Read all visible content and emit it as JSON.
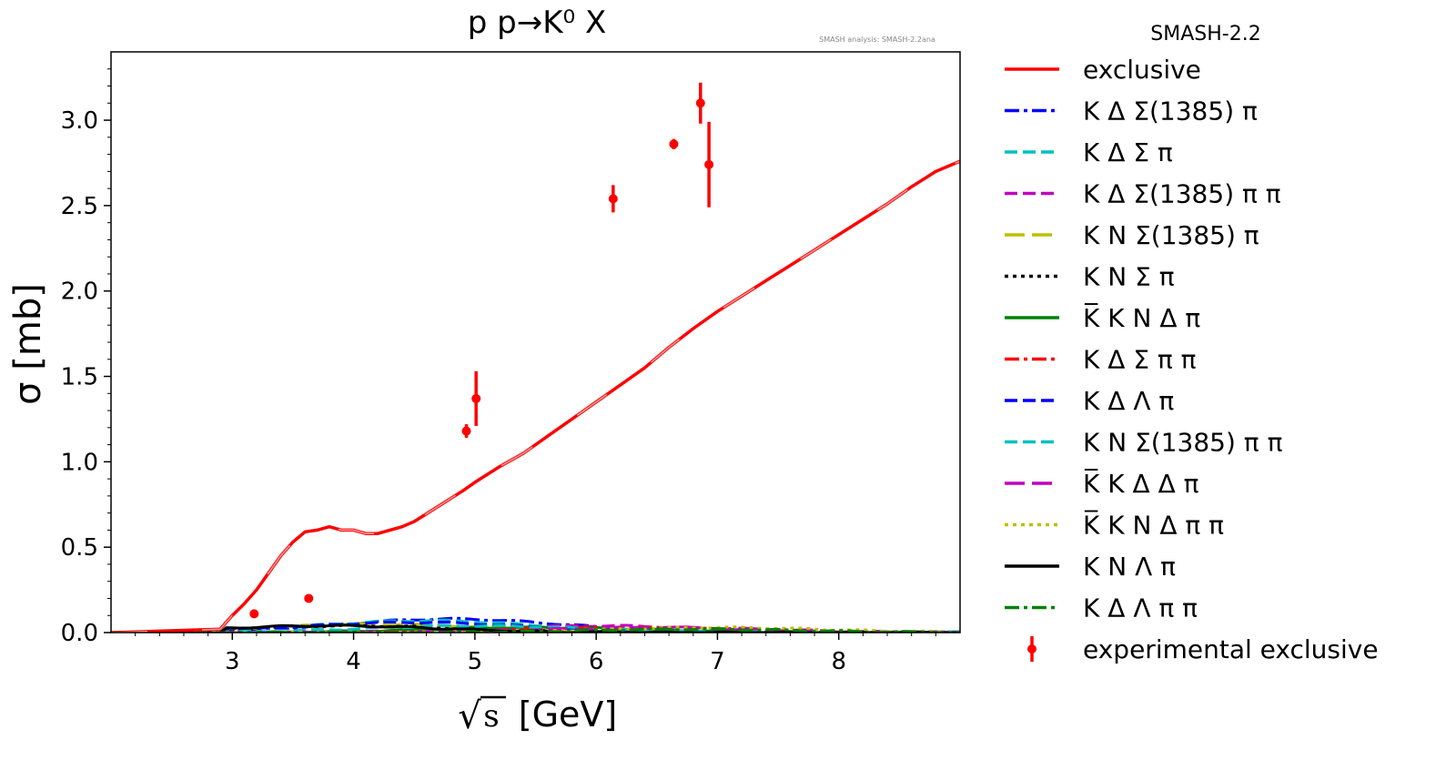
{
  "chart_data": {
    "type": "line",
    "title": "p p→K⁰ X",
    "annotation": "SMASH analysis: SMASH-2.2ana",
    "xlabel_unit": "[GeV]",
    "ylabel": "σ [mb]",
    "xlim": [
      2.0,
      9.0
    ],
    "ylim": [
      0.0,
      3.4
    ],
    "x_ticks": [
      3,
      4,
      5,
      6,
      7,
      8
    ],
    "x_tick_labels": [
      "3",
      "4",
      "5",
      "6",
      "7",
      "8"
    ],
    "y_ticks": [
      0.0,
      0.5,
      1.0,
      1.5,
      2.0,
      2.5,
      3.0
    ],
    "y_tick_labels": [
      "0.0",
      "0.5",
      "1.0",
      "1.5",
      "2.0",
      "2.5",
      "3.0"
    ],
    "grid": false,
    "legend_position": "outside-right",
    "legend_title": "SMASH-2.2",
    "exclusive": {
      "name": "exclusive",
      "color": "#ff0000",
      "x": [
        2.0,
        2.9,
        3.0,
        3.1,
        3.2,
        3.3,
        3.4,
        3.5,
        3.6,
        3.7,
        3.8,
        3.9,
        4.0,
        4.1,
        4.2,
        4.3,
        4.4,
        4.5,
        4.7,
        4.9,
        5.0,
        5.2,
        5.4,
        5.6,
        5.8,
        6.0,
        6.2,
        6.4,
        6.6,
        6.8,
        7.0,
        7.2,
        7.4,
        7.6,
        7.8,
        8.0,
        8.2,
        8.4,
        8.6,
        8.8,
        9.0
      ],
      "y": [
        0.0,
        0.02,
        0.1,
        0.17,
        0.25,
        0.35,
        0.45,
        0.53,
        0.59,
        0.6,
        0.62,
        0.6,
        0.6,
        0.58,
        0.58,
        0.6,
        0.62,
        0.65,
        0.74,
        0.83,
        0.88,
        0.97,
        1.05,
        1.15,
        1.25,
        1.35,
        1.45,
        1.55,
        1.67,
        1.78,
        1.88,
        1.97,
        2.06,
        2.15,
        2.24,
        2.33,
        2.42,
        2.51,
        2.61,
        2.7,
        2.76
      ]
    },
    "experimental_exclusive": {
      "name": "experimental exclusive",
      "color": "#ff0000",
      "points": [
        {
          "x": 3.18,
          "y": 0.11,
          "err": 0.0
        },
        {
          "x": 3.63,
          "y": 0.2,
          "err": 0.0
        },
        {
          "x": 4.93,
          "y": 1.18,
          "err": 0.04
        },
        {
          "x": 5.01,
          "y": 1.37,
          "err": 0.16
        },
        {
          "x": 6.14,
          "y": 2.54,
          "err": 0.08
        },
        {
          "x": 6.64,
          "y": 2.86,
          "err": 0.03
        },
        {
          "x": 6.86,
          "y": 3.1,
          "err": 0.12
        },
        {
          "x": 6.93,
          "y": 2.74,
          "err": 0.25
        }
      ]
    },
    "minor_channels": [
      {
        "name": "K Δ Σ(1385) π",
        "color": "#0000ff",
        "dash": "dashdot",
        "peak_x": 4.8,
        "peak_y": 0.08
      },
      {
        "name": "K Δ Σ π",
        "color": "#00bfbf",
        "dash": "dashed",
        "peak_x": 4.6,
        "peak_y": 0.07
      },
      {
        "name": "K Δ Σ(1385) π π",
        "color": "#bf00bf",
        "dash": "dashed",
        "peak_x": 6.0,
        "peak_y": 0.04
      },
      {
        "name": "K N Σ(1385) π",
        "color": "#bfbf00",
        "dash": "longdash",
        "peak_x": 4.2,
        "peak_y": 0.05
      },
      {
        "name": "K N Σ π",
        "color": "#000000",
        "dash": "dotted",
        "peak_x": 4.0,
        "peak_y": 0.04
      },
      {
        "name": "K̅ K N Δ π",
        "color": "#008000",
        "dash": "solid",
        "peak_x": 5.5,
        "peak_y": 0.03
      },
      {
        "name": "K Δ Σ π π",
        "color": "#ff0000",
        "dash": "dashdot",
        "peak_x": 6.2,
        "peak_y": 0.03
      },
      {
        "name": "K Δ Λ π",
        "color": "#0000ff",
        "dash": "dashed",
        "peak_x": 4.5,
        "peak_y": 0.06
      },
      {
        "name": "K N Σ(1385) π π",
        "color": "#00bfbf",
        "dash": "dashed",
        "peak_x": 5.0,
        "peak_y": 0.04
      },
      {
        "name": "K̅ K Δ Δ π",
        "color": "#bf00bf",
        "dash": "longdash",
        "peak_x": 6.5,
        "peak_y": 0.03
      },
      {
        "name": "K̅ K N Δ π π",
        "color": "#bfbf00",
        "dash": "dotted",
        "peak_x": 7.0,
        "peak_y": 0.03
      },
      {
        "name": "K N Λ π",
        "color": "#000000",
        "dash": "solid",
        "peak_x": 3.8,
        "peak_y": 0.04
      },
      {
        "name": "K Δ Λ π π",
        "color": "#008000",
        "dash": "dashdot",
        "peak_x": 6.8,
        "peak_y": 0.02
      }
    ]
  }
}
